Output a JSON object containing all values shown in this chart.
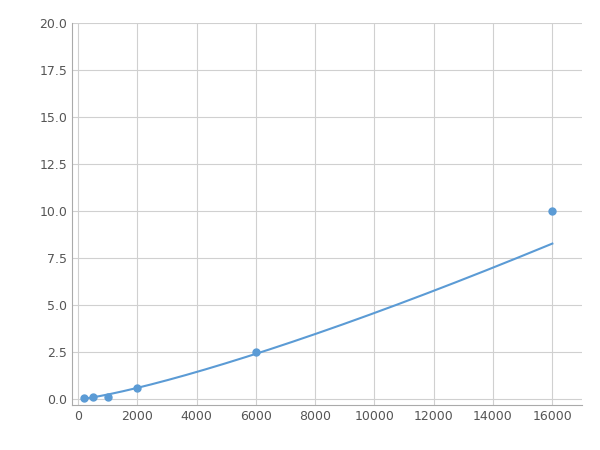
{
  "x": [
    200,
    500,
    1000,
    2000,
    6000,
    16000
  ],
  "y": [
    0.05,
    0.1,
    0.15,
    0.6,
    2.5,
    10.0
  ],
  "line_color": "#5b9bd5",
  "marker_color": "#5b9bd5",
  "marker_size": 5,
  "line_width": 1.5,
  "xlim": [
    -200,
    17000
  ],
  "ylim": [
    -0.3,
    20.0
  ],
  "xticks": [
    0,
    2000,
    4000,
    6000,
    8000,
    10000,
    12000,
    14000,
    16000
  ],
  "yticks": [
    0.0,
    2.5,
    5.0,
    7.5,
    10.0,
    12.5,
    15.0,
    17.5,
    20.0
  ],
  "grid_color": "#d0d0d0",
  "background_color": "#ffffff",
  "figure_facecolor": "#ffffff"
}
